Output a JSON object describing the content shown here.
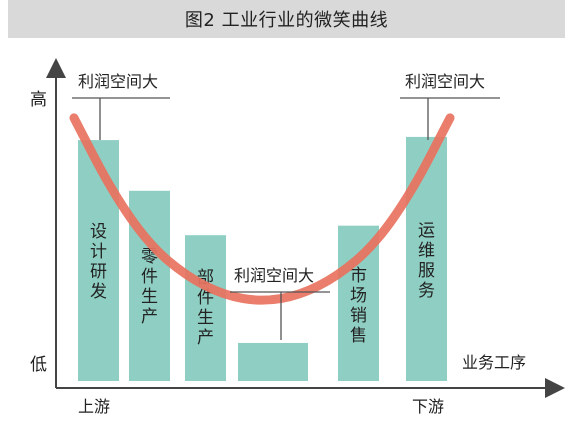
{
  "title": "图2 工业行业的微笑曲线",
  "chart_data": {
    "type": "bar",
    "categories": [
      "设计研发",
      "零件生产",
      "部件生产",
      "",
      "市场销售",
      "运维服务"
    ],
    "values": [
      7.6,
      6.0,
      4.6,
      1.2,
      4.9,
      7.7
    ],
    "ylabel_high": "高",
    "ylabel_low": "低",
    "xlabel": "业务工序",
    "x_start": "上游",
    "x_end": "下游",
    "curve_label": "利润空间大",
    "callouts": [
      "利润空间大",
      "利润空间大",
      "利润空间大"
    ],
    "curve": {
      "description": "smile curve",
      "points_x": [
        0,
        0.1,
        0.2,
        0.3,
        0.4,
        0.5,
        0.6,
        0.7,
        0.8,
        0.9,
        1.0
      ],
      "points_y": [
        8.3,
        6.0,
        4.3,
        3.3,
        2.7,
        2.5,
        2.7,
        3.3,
        4.3,
        6.0,
        8.3
      ]
    },
    "ylim": [
      0,
      10
    ],
    "colors": {
      "bar": "#8fcfc3",
      "curve": "#e8725e",
      "axis": "#444444"
    }
  }
}
